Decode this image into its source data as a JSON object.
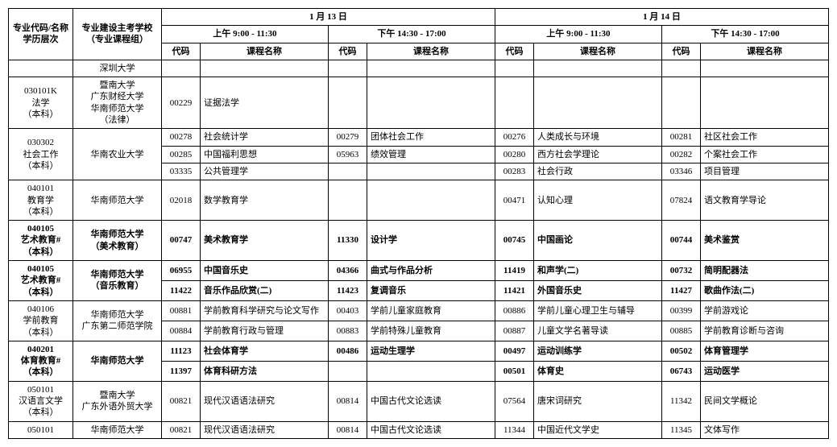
{
  "headers": {
    "major": "专业代码/名称\n学历层次",
    "school": "专业建设主考学校\n（专业课程组）",
    "day1": "1 月 13 日",
    "day2": "1 月 14 日",
    "am": "上午  9:00 - 11:30",
    "pm": "下午  14:30 - 17:00",
    "code": "代码",
    "course": "课程名称"
  },
  "colwidths": {
    "major": "80px",
    "school": "110px",
    "code": "48px",
    "course": "160px"
  },
  "rows": [
    {
      "school": "深圳大学",
      "s1c": "",
      "s1n": "",
      "s2c": "",
      "s2n": "",
      "s3c": "",
      "s3n": "",
      "s4c": "",
      "s4n": ""
    },
    {
      "major": "030101K\n法学\n（本科）",
      "majorRowspan": 1,
      "school": "暨南大学\n广东财经大学\n华南师范大学\n（法律）",
      "s1c": "00229",
      "s1n": "证据法学",
      "s2c": "",
      "s2n": "",
      "s3c": "",
      "s3n": "",
      "s4c": "",
      "s4n": ""
    },
    {
      "major": "030302\n社会工作\n（本科）",
      "majorRowspan": 3,
      "school": "华南农业大学",
      "schoolRowspan": 3,
      "s1c": "00278",
      "s1n": "社会统计学",
      "s2c": "00279",
      "s2n": "团体社会工作",
      "s3c": "00276",
      "s3n": "人类成长与环境",
      "s4c": "00281",
      "s4n": "社区社会工作"
    },
    {
      "s1c": "00285",
      "s1n": "中国福利思想",
      "s2c": "05963",
      "s2n": "绩效管理",
      "s3c": "00280",
      "s3n": "西方社会学理论",
      "s4c": "00282",
      "s4n": "个案社会工作"
    },
    {
      "s1c": "03335",
      "s1n": "公共管理学",
      "s2c": "",
      "s2n": "",
      "s3c": "00283",
      "s3n": "社会行政",
      "s4c": "03346",
      "s4n": "项目管理"
    },
    {
      "major": "040101\n教育学\n（本科）",
      "majorRowspan": 1,
      "school": "华南师范大学",
      "s1c": "02018",
      "s1n": "数学教育学",
      "s2c": "",
      "s2n": "",
      "s3c": "00471",
      "s3n": "认知心理",
      "s4c": "07824",
      "s4n": "语文教育学导论"
    },
    {
      "bold": true,
      "major": "040105\n艺术教育#\n（本科）",
      "majorRowspan": 1,
      "school": "华南师范大学\n（美术教育）",
      "s1c": "00747",
      "s1n": "美术教育学",
      "s2c": "11330",
      "s2n": "设计学",
      "s3c": "00745",
      "s3n": "中国画论",
      "s4c": "00744",
      "s4n": "美术鉴赏"
    },
    {
      "bold": true,
      "major": "040105\n艺术教育#\n（本科）",
      "majorRowspan": 2,
      "school": "华南师范大学\n（音乐教育）",
      "schoolRowspan": 2,
      "s1c": "06955",
      "s1n": "中国音乐史",
      "s2c": "04366",
      "s2n": "曲式与作品分析",
      "s3c": "11419",
      "s3n": "和声学(二)",
      "s4c": "00732",
      "s4n": "简明配器法"
    },
    {
      "bold": true,
      "s1c": "11422",
      "s1n": "音乐作品欣赏(二)",
      "s2c": "11423",
      "s2n": "复调音乐",
      "s3c": "11421",
      "s3n": "外国音乐史",
      "s4c": "11427",
      "s4n": "歌曲作法(二)"
    },
    {
      "major": "040106\n学前教育\n（本科）",
      "majorRowspan": 2,
      "school": "华南师范大学\n广东第二师范学院",
      "schoolRowspan": 2,
      "s1c": "00881",
      "s1n": "学前教育科学研究与论文写作",
      "s2c": "00403",
      "s2n": "学前儿童家庭教育",
      "s3c": "00886",
      "s3n": "学前儿童心理卫生与辅导",
      "s4c": "00399",
      "s4n": "学前游戏论"
    },
    {
      "s1c": "00884",
      "s1n": "学前教育行政与管理",
      "s2c": "00883",
      "s2n": "学前特殊儿童教育",
      "s3c": "00887",
      "s3n": "儿童文学名著导读",
      "s4c": "00885",
      "s4n": "学前教育诊断与咨询"
    },
    {
      "bold": true,
      "major": "040201\n体育教育#\n（本科）",
      "majorRowspan": 2,
      "school": "华南师范大学",
      "schoolRowspan": 2,
      "s1c": "11123",
      "s1n": "社会体育学",
      "s2c": "00486",
      "s2n": "运动生理学",
      "s3c": "00497",
      "s3n": "运动训练学",
      "s4c": "00502",
      "s4n": "体育管理学"
    },
    {
      "bold": true,
      "s1c": "11397",
      "s1n": "体育科研方法",
      "s2c": "",
      "s2n": "",
      "s3c": "00501",
      "s3n": "体育史",
      "s4c": "06743",
      "s4n": "运动医学"
    },
    {
      "major": "050101\n汉语言文学\n（本科）",
      "majorRowspan": 1,
      "school": "暨南大学\n广东外语外贸大学",
      "s1c": "00821",
      "s1n": "现代汉语语法研究",
      "s2c": "00814",
      "s2n": "中国古代文论选读",
      "s3c": "07564",
      "s3n": "唐宋词研究",
      "s4c": "11342",
      "s4n": "民间文学概论"
    },
    {
      "major": "050101",
      "majorRowspan": 1,
      "school": "华南师范大学",
      "s1c": "00821",
      "s1n": "现代汉语语法研究",
      "s2c": "00814",
      "s2n": "中国古代文论选读",
      "s3c": "11344",
      "s3n": "中国近代文学史",
      "s4c": "11345",
      "s4n": "文体写作"
    }
  ]
}
